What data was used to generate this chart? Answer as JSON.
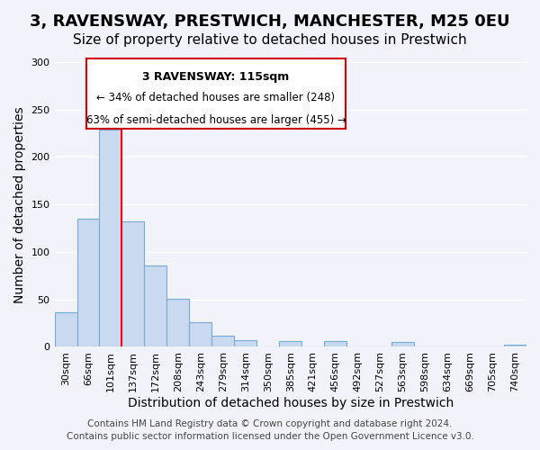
{
  "title": "3, RAVENSWAY, PRESTWICH, MANCHESTER, M25 0EU",
  "subtitle": "Size of property relative to detached houses in Prestwich",
  "xlabel": "Distribution of detached houses by size in Prestwich",
  "ylabel": "Number of detached properties",
  "bin_labels": [
    "30sqm",
    "66sqm",
    "101sqm",
    "137sqm",
    "172sqm",
    "208sqm",
    "243sqm",
    "279sqm",
    "314sqm",
    "350sqm",
    "385sqm",
    "421sqm",
    "456sqm",
    "492sqm",
    "527sqm",
    "563sqm",
    "598sqm",
    "634sqm",
    "669sqm",
    "705sqm",
    "740sqm"
  ],
  "bar_heights": [
    36,
    135,
    229,
    132,
    86,
    51,
    26,
    12,
    7,
    0,
    6,
    0,
    6,
    0,
    0,
    5,
    0,
    0,
    0,
    0,
    2
  ],
  "bar_color": "#c9d9f0",
  "bar_edge_color": "#7aaad4",
  "red_line_x": 2,
  "red_line_value": 115,
  "annotation_title": "3 RAVENSWAY: 115sqm",
  "annotation_line1": "← 34% of detached houses are smaller (248)",
  "annotation_line2": "63% of semi-detached houses are larger (455) →",
  "annotation_box_color": "#ffffff",
  "annotation_box_edge": "#cc0000",
  "ylim": [
    0,
    300
  ],
  "yticks": [
    0,
    50,
    100,
    150,
    200,
    250,
    300
  ],
  "footer_line1": "Contains HM Land Registry data © Crown copyright and database right 2024.",
  "footer_line2": "Contains public sector information licensed under the Open Government Licence v3.0.",
  "background_color": "#f0f4fa",
  "grid_color": "#ffffff",
  "title_fontsize": 13,
  "subtitle_fontsize": 11,
  "axis_label_fontsize": 10,
  "tick_fontsize": 8,
  "footer_fontsize": 7.5
}
